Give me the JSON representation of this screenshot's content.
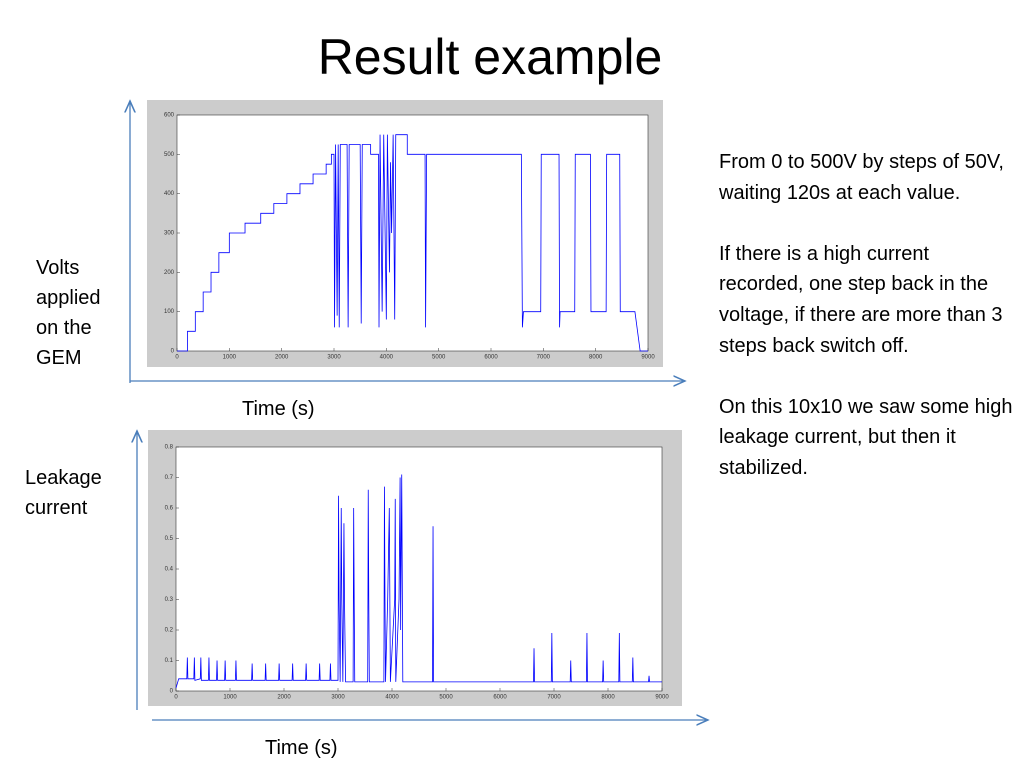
{
  "slide": {
    "title": "Result example",
    "notes": [
      "From 0 to 500V by steps of 50V, waiting 120s at each value.",
      "If there is a high current recorded, one step back in the voltage, if there are more than 3 steps back switch off.",
      "On this 10x10 we saw some high leakage current, but then it stabilized."
    ]
  },
  "chart_data": [
    {
      "type": "line",
      "y_axis_label": "Volts applied on the GEM",
      "x_axis_label": "Time (s)",
      "color": "#0000ff",
      "xlim": [
        0,
        9000
      ],
      "xticks": [
        0,
        1000,
        2000,
        3000,
        4000,
        5000,
        6000,
        7000,
        8000,
        9000
      ],
      "ylim": [
        0,
        600
      ],
      "yticks": [
        0,
        100,
        200,
        300,
        400,
        500,
        600
      ],
      "x": [
        0,
        200,
        200,
        350,
        350,
        500,
        500,
        650,
        650,
        800,
        800,
        1000,
        1000,
        1300,
        1300,
        1600,
        1600,
        1850,
        1850,
        2100,
        2100,
        2350,
        2350,
        2600,
        2600,
        2850,
        2850,
        2950,
        2950,
        3000,
        3010,
        3030,
        3060,
        3080,
        3100,
        3120,
        3250,
        3270,
        3290,
        3500,
        3520,
        3540,
        3700,
        3700,
        3850,
        3860,
        3880,
        3920,
        3950,
        4000,
        4020,
        4060,
        4080,
        4100,
        4130,
        4160,
        4180,
        4400,
        4400,
        4740,
        4750,
        4770,
        6580,
        6600,
        6620,
        6950,
        6960,
        7300,
        7310,
        7320,
        7600,
        7610,
        7900,
        7910,
        8200,
        8210,
        8460,
        8470,
        8750,
        8850,
        9000
      ],
      "values": [
        0,
        0,
        50,
        50,
        100,
        100,
        150,
        150,
        200,
        200,
        250,
        250,
        300,
        300,
        325,
        325,
        350,
        350,
        375,
        375,
        400,
        400,
        425,
        425,
        450,
        450,
        475,
        475,
        500,
        500,
        60,
        525,
        90,
        525,
        60,
        525,
        525,
        60,
        525,
        525,
        70,
        525,
        525,
        500,
        500,
        60,
        550,
        100,
        550,
        80,
        550,
        200,
        480,
        300,
        550,
        80,
        550,
        550,
        500,
        500,
        60,
        500,
        500,
        60,
        100,
        100,
        500,
        500,
        60,
        100,
        100,
        500,
        500,
        100,
        100,
        500,
        500,
        100,
        100,
        0,
        0
      ]
    },
    {
      "type": "line",
      "y_axis_label": "Leakage current",
      "x_axis_label": "Time (s)",
      "color": "#0000ff",
      "xlim": [
        0,
        9000
      ],
      "xticks": [
        0,
        1000,
        2000,
        3000,
        4000,
        5000,
        6000,
        7000,
        8000,
        9000
      ],
      "ylim": [
        0,
        0.8
      ],
      "yticks": [
        0,
        0.1,
        0.2,
        0.3,
        0.4,
        0.5,
        0.6,
        0.7,
        0.8
      ],
      "x": [
        0,
        50,
        200,
        210,
        220,
        330,
        340,
        350,
        450,
        460,
        470,
        600,
        610,
        620,
        750,
        760,
        770,
        900,
        910,
        920,
        1100,
        1110,
        1120,
        1400,
        1410,
        1420,
        1650,
        1660,
        1670,
        1900,
        1910,
        1920,
        2150,
        2160,
        2170,
        2400,
        2410,
        2420,
        2650,
        2660,
        2670,
        2850,
        2860,
        2870,
        3000,
        3010,
        3020,
        3040,
        3060,
        3070,
        3090,
        3110,
        3120,
        3140,
        3280,
        3290,
        3300,
        3310,
        3550,
        3560,
        3570,
        3580,
        3850,
        3860,
        3870,
        3880,
        3920,
        3950,
        3970,
        4050,
        4060,
        4070,
        4130,
        4150,
        4160,
        4180,
        4200,
        4750,
        4760,
        4770,
        6620,
        6630,
        6640,
        6950,
        6960,
        6970,
        7300,
        7310,
        7320,
        7600,
        7610,
        7620,
        7900,
        7910,
        7920,
        8200,
        8210,
        8220,
        8450,
        8460,
        8470,
        8750,
        8760,
        8770,
        9000
      ],
      "values": [
        0.01,
        0.04,
        0.04,
        0.11,
        0.04,
        0.04,
        0.11,
        0.035,
        0.04,
        0.11,
        0.035,
        0.035,
        0.11,
        0.035,
        0.035,
        0.1,
        0.035,
        0.035,
        0.1,
        0.035,
        0.035,
        0.1,
        0.035,
        0.035,
        0.09,
        0.035,
        0.035,
        0.09,
        0.035,
        0.035,
        0.09,
        0.035,
        0.035,
        0.09,
        0.035,
        0.035,
        0.09,
        0.035,
        0.035,
        0.09,
        0.035,
        0.035,
        0.09,
        0.035,
        0.035,
        0.64,
        0.3,
        0.03,
        0.6,
        0.3,
        0.03,
        0.55,
        0.3,
        0.03,
        0.03,
        0.6,
        0.3,
        0.03,
        0.03,
        0.66,
        0.3,
        0.03,
        0.03,
        0.67,
        0.3,
        0.03,
        0.3,
        0.6,
        0.03,
        0.3,
        0.63,
        0.03,
        0.3,
        0.7,
        0.2,
        0.71,
        0.03,
        0.03,
        0.54,
        0.03,
        0.03,
        0.14,
        0.03,
        0.03,
        0.19,
        0.03,
        0.03,
        0.1,
        0.03,
        0.03,
        0.19,
        0.03,
        0.03,
        0.1,
        0.03,
        0.03,
        0.19,
        0.03,
        0.03,
        0.11,
        0.03,
        0.03,
        0.05,
        0.03,
        0.03
      ]
    }
  ]
}
